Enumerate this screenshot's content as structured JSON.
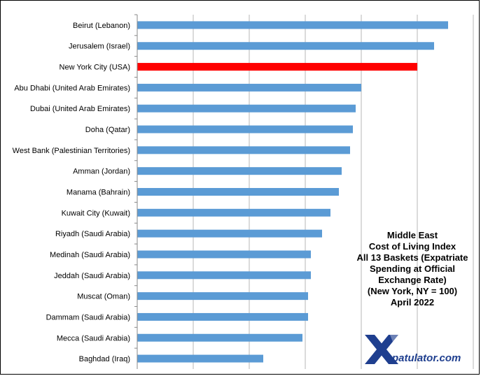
{
  "chart_data": {
    "type": "bar",
    "orientation": "horizontal",
    "categories": [
      "Beirut (Lebanon)",
      "Jerusalem (Israel)",
      "New York City (USA)",
      "Abu Dhabi (United Arab Emirates)",
      "Dubai (United Arab Emirates)",
      "Doha (Qatar)",
      "West Bank (Palestinian Territories)",
      "Amman (Jordan)",
      "Manama (Bahrain)",
      "Kuwait City (Kuwait)",
      "Riyadh (Saudi Arabia)",
      "Medinah (Saudi Arabia)",
      "Jeddah (Saudi Arabia)",
      "Muscat (Oman)",
      "Dammam (Saudi Arabia)",
      "Mecca (Saudi Arabia)",
      "Baghdad (Iraq)"
    ],
    "values": [
      111,
      106,
      100,
      80,
      78,
      77,
      76,
      73,
      72,
      69,
      66,
      62,
      62,
      61,
      61,
      59,
      45
    ],
    "highlight": "New York City (USA)",
    "bar_color": "#5b9bd5",
    "highlight_color": "#ff0000",
    "xlim": [
      0,
      120
    ],
    "grid": "vertical",
    "title_lines": [
      "Middle East",
      "Cost of Living Index",
      "All 13 Baskets (Expatriate",
      "Spending  at Official",
      "Exchange Rate)",
      "(New York, NY = 100)",
      "April 2022"
    ]
  },
  "logo": {
    "text": "patulator.com",
    "mark": "X",
    "color": "#1f3f8f"
  }
}
